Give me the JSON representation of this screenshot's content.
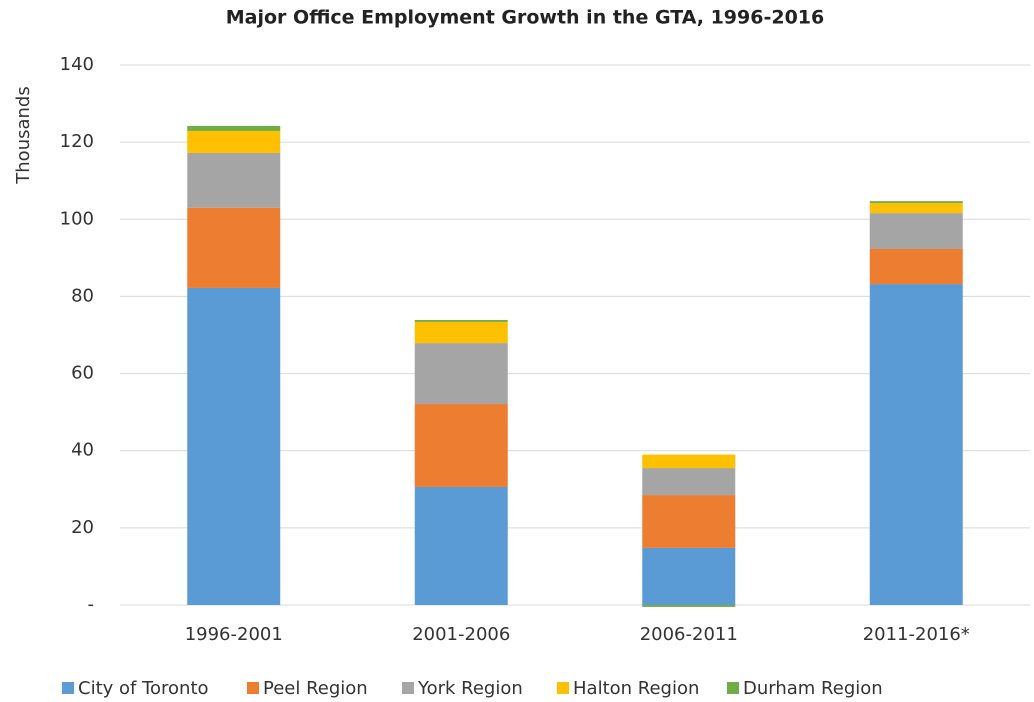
{
  "chart_data": {
    "type": "bar",
    "stacked": true,
    "title": "Major Office Employment Growth in the GTA, 1996-2016",
    "y_label": "Thousands",
    "categories": [
      "1996-2001",
      "2001-2006",
      "2006-2011",
      "2011-2016*"
    ],
    "series": [
      {
        "name": "City of Toronto",
        "color": "#5b9bd5",
        "values": [
          82.2,
          30.6,
          14.8,
          83.2
        ]
      },
      {
        "name": "Peel Region",
        "color": "#ed7d31",
        "values": [
          20.8,
          21.5,
          13.7,
          9.1
        ]
      },
      {
        "name": "York Region",
        "color": "#a5a5a5",
        "values": [
          14.2,
          15.8,
          7.0,
          9.3
        ]
      },
      {
        "name": "Halton Region",
        "color": "#ffc000",
        "values": [
          5.7,
          5.5,
          3.5,
          2.6
        ]
      },
      {
        "name": "Durham Region",
        "color": "#70ad47",
        "values": [
          1.3,
          0.5,
          -0.5,
          0.5
        ]
      }
    ],
    "ylim": [
      0,
      140
    ],
    "yticks": [
      {
        "value": 0,
        "label": "-"
      },
      20,
      40,
      60,
      80,
      100,
      120,
      140
    ],
    "grid": true,
    "legend": "bottom"
  }
}
